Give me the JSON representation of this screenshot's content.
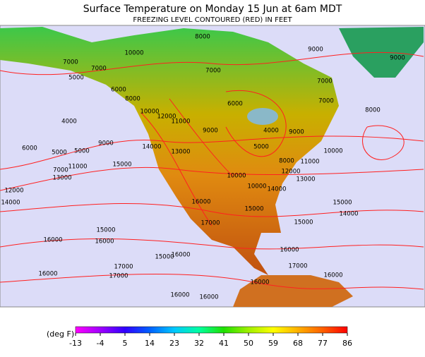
{
  "header": {
    "title": "Surface Temperature on Monday 15 Jun at 6am MDT",
    "subtitle": "FREEZING LEVEL CONTOURED (RED) IN FEET"
  },
  "contour_labels": [
    "8000",
    "10000",
    "9000",
    "7000",
    "7000",
    "7000",
    "9000",
    "5000",
    "6000",
    "8000",
    "7000",
    "7000",
    "6000",
    "8000",
    "4000",
    "10000",
    "12000",
    "11000",
    "9000",
    "4000",
    "9000",
    "6000",
    "5000",
    "5000",
    "9000",
    "14000",
    "13000",
    "5000",
    "10000",
    "7000",
    "11000",
    "15000",
    "8000",
    "12000",
    "11000",
    "13000",
    "10000",
    "10000",
    "14000",
    "13000",
    "12000",
    "14000",
    "16000",
    "15000",
    "15000",
    "14000",
    "17000",
    "15000",
    "15000",
    "16000",
    "16000",
    "15000",
    "16000",
    "16000",
    "17000",
    "17000",
    "17000",
    "16000",
    "16000",
    "16000",
    "16000",
    "16000"
  ],
  "legend": {
    "unit_label": "(deg F)",
    "ticks": [
      -13,
      -4,
      5,
      14,
      23,
      32,
      41,
      50,
      59,
      68,
      77,
      86
    ],
    "colors": [
      "#ff00ff",
      "#a000ff",
      "#3000ff",
      "#0060ff",
      "#00c8ff",
      "#00ffa0",
      "#20e000",
      "#a0f000",
      "#ffff00",
      "#ffb000",
      "#ff6000",
      "#ff0000"
    ]
  }
}
